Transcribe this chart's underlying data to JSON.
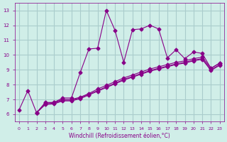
{
  "xlabel": "Windchill (Refroidissement éolien,°C)",
  "ylabel": "",
  "background_color": "#d0eee8",
  "grid_color": "#aacccc",
  "line_color": "#880088",
  "ylim": [
    5.5,
    13.5
  ],
  "xlim": [
    -0.5,
    23.5
  ],
  "yticks": [
    6,
    7,
    8,
    9,
    10,
    11,
    12,
    13
  ],
  "xticks": [
    0,
    1,
    2,
    3,
    4,
    5,
    6,
    7,
    8,
    9,
    10,
    11,
    12,
    13,
    14,
    15,
    16,
    17,
    18,
    19,
    20,
    21,
    22,
    23
  ],
  "line1_x": [
    0,
    1,
    2,
    3,
    4,
    5,
    6,
    7,
    8,
    9,
    10,
    11,
    12,
    13,
    14,
    15,
    16,
    17,
    18,
    19,
    20,
    21,
    22,
    23
  ],
  "line1_y": [
    6.3,
    7.6,
    6.1,
    6.8,
    6.8,
    7.1,
    7.1,
    8.8,
    10.4,
    10.45,
    13.0,
    11.65,
    9.5,
    11.7,
    11.75,
    12.0,
    11.75,
    9.8,
    10.35,
    9.75,
    10.2,
    10.1,
    9.1,
    9.45
  ],
  "line2_x": [
    2,
    3,
    4,
    5,
    6,
    7,
    8,
    9,
    10,
    11,
    12,
    13,
    14,
    15,
    16,
    17,
    18,
    19,
    20,
    21,
    22,
    23
  ],
  "line2_y": [
    6.1,
    6.75,
    6.8,
    7.0,
    7.0,
    7.15,
    7.4,
    7.7,
    7.95,
    8.2,
    8.45,
    8.65,
    8.85,
    9.05,
    9.2,
    9.35,
    9.5,
    9.6,
    9.75,
    9.85,
    9.1,
    9.45
  ],
  "line3_x": [
    2,
    3,
    4,
    5,
    6,
    7,
    8,
    9,
    10,
    11,
    12,
    13,
    14,
    15,
    16,
    17,
    18,
    19,
    20,
    21,
    22,
    23
  ],
  "line3_y": [
    6.1,
    6.7,
    6.75,
    6.95,
    6.95,
    7.1,
    7.35,
    7.6,
    7.85,
    8.1,
    8.35,
    8.55,
    8.75,
    8.95,
    9.1,
    9.25,
    9.4,
    9.5,
    9.65,
    9.75,
    9.0,
    9.35
  ],
  "line4_x": [
    2,
    3,
    4,
    5,
    6,
    7,
    8,
    9,
    10,
    11,
    12,
    13,
    14,
    15,
    16,
    17,
    18,
    19,
    20,
    21,
    22,
    23
  ],
  "line4_y": [
    6.1,
    6.65,
    6.7,
    6.9,
    6.9,
    7.05,
    7.3,
    7.55,
    7.8,
    8.05,
    8.3,
    8.5,
    8.7,
    8.9,
    9.05,
    9.2,
    9.35,
    9.45,
    9.6,
    9.7,
    8.95,
    9.3
  ]
}
